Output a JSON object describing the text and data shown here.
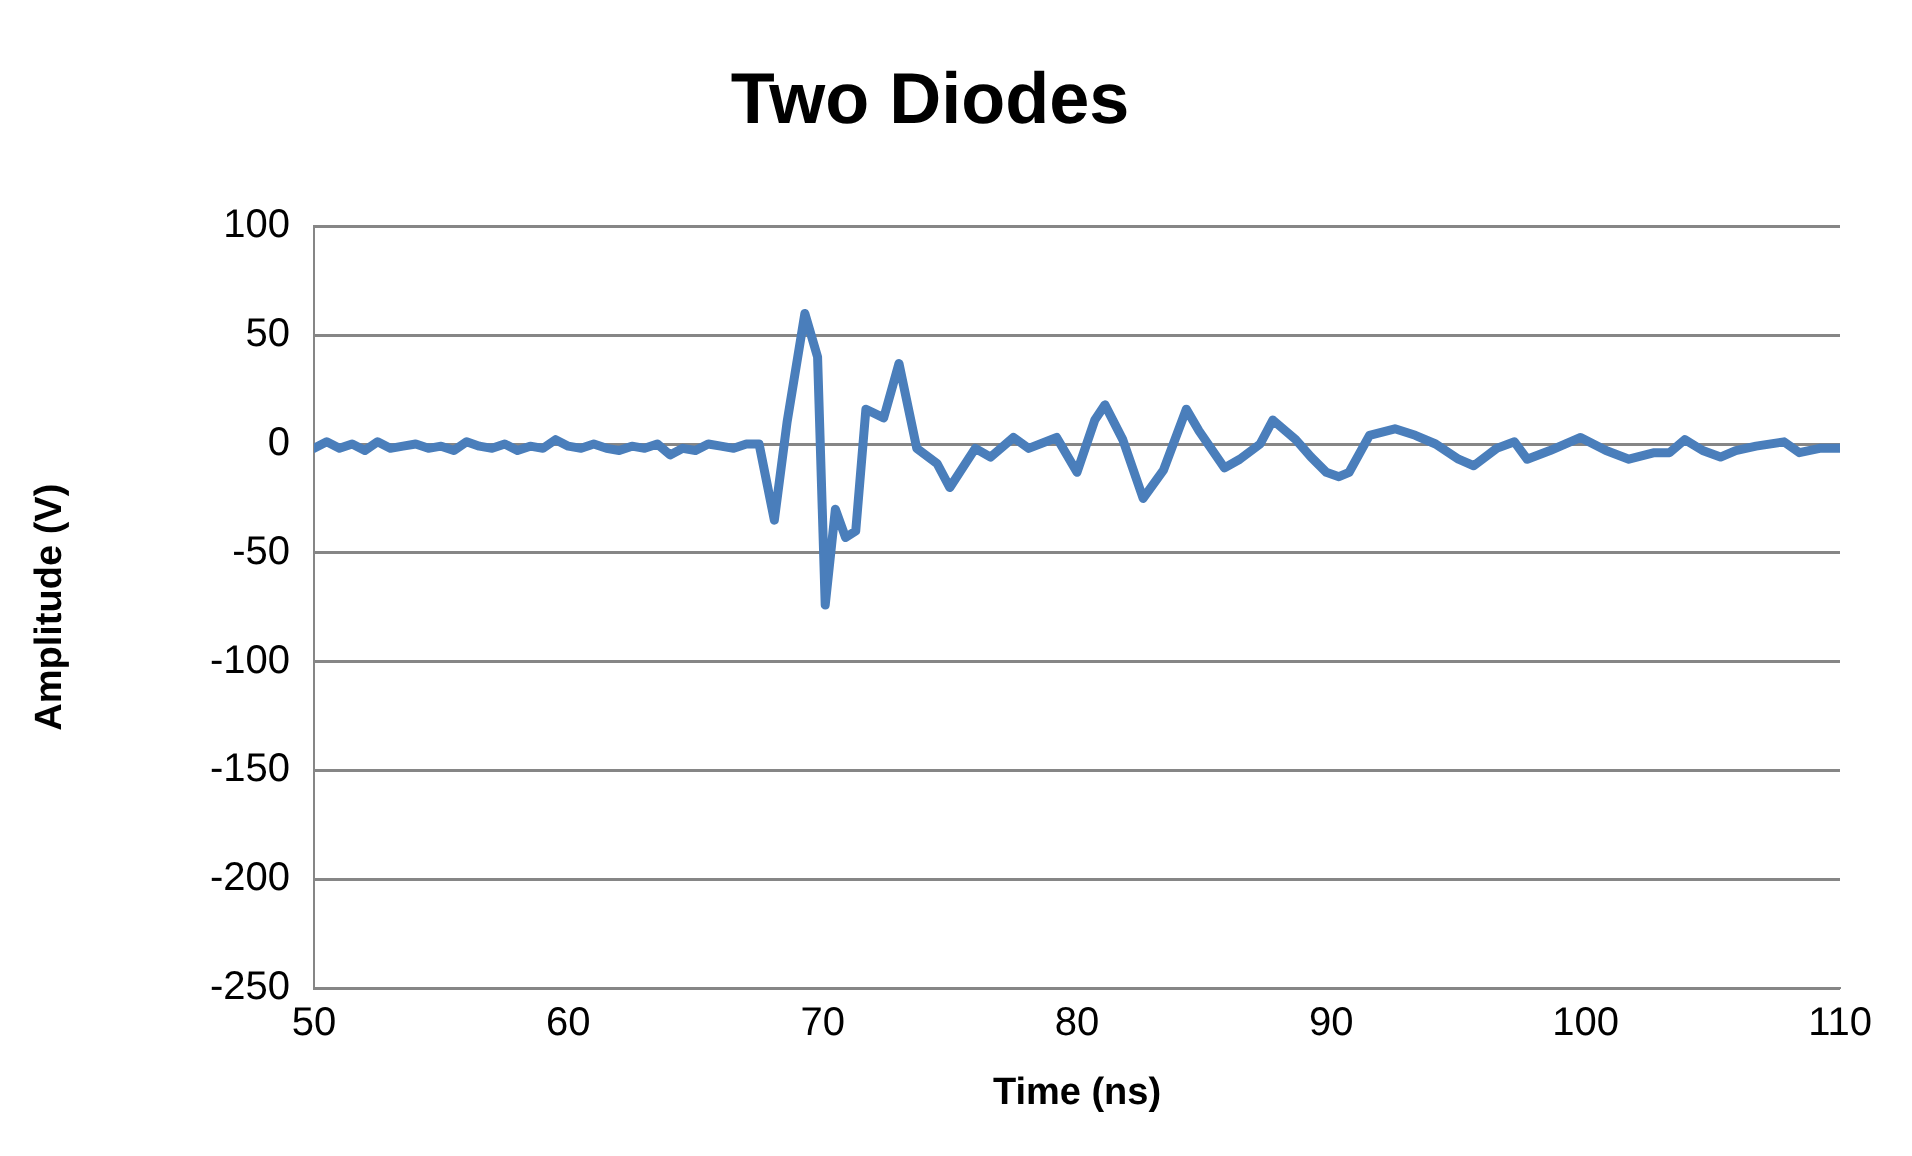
{
  "chart_data": {
    "type": "line",
    "title": "Two Diodes",
    "xlabel": "Time (ns)",
    "ylabel": "Amplitude (V)",
    "x": [
      50,
      50.5,
      51,
      51.5,
      52,
      52.5,
      53,
      53.5,
      54,
      54.5,
      55,
      55.5,
      56,
      56.5,
      57,
      57.5,
      58,
      58.5,
      59,
      59.5,
      60,
      60.5,
      61,
      61.5,
      62,
      62.5,
      63,
      63.5,
      64,
      64.5,
      65,
      65.5,
      66,
      66.5,
      67,
      67.5,
      68.1,
      68.6,
      69.3,
      69.8,
      70.1,
      70.5,
      70.9,
      71.3,
      71.7,
      72.4,
      73,
      73.7,
      74.5,
      75,
      76,
      76.6,
      77.5,
      78.1,
      79.2,
      80,
      80.7,
      81.1,
      81.8,
      82.6,
      83.4,
      84.3,
      84.8,
      85.8,
      86.4,
      87.2,
      87.7,
      88.6,
      89.2,
      89.8,
      90.3,
      90.7,
      91.5,
      92.5,
      93.3,
      94.1,
      95,
      95.6,
      96.5,
      97.2,
      97.7,
      98.6,
      99.8,
      100.8,
      101.7,
      102.7,
      103.3,
      103.9,
      104.6,
      105.3,
      105.9,
      106.7,
      107.8,
      108.4,
      109.2,
      110
    ],
    "values": [
      -2,
      1,
      -2,
      0,
      -3,
      1,
      -2,
      -1,
      0,
      -2,
      -1,
      -3,
      1,
      -1,
      -2,
      0,
      -3,
      -1,
      -2,
      2,
      -1,
      -2,
      0,
      -2,
      -3,
      -1,
      -2,
      0,
      -5,
      -2,
      -3,
      0,
      -1,
      -2,
      0,
      0,
      -35,
      10,
      60,
      40,
      -74,
      -30,
      -43,
      -40,
      16,
      12,
      37,
      -2,
      -9,
      -20,
      -2,
      -6,
      3,
      -2,
      3,
      -13,
      11,
      18,
      2,
      -25,
      -12,
      16,
      6,
      -11,
      -7,
      0,
      11,
      2,
      -6,
      -13,
      -15,
      -13,
      4,
      7,
      4,
      0,
      -7,
      -10,
      -2,
      1,
      -7,
      -3,
      3,
      -3,
      -7,
      -4,
      -4,
      2,
      -3,
      -6,
      -3,
      -1,
      1,
      -4,
      -2,
      -2
    ],
    "color": "#4a7ebb",
    "marker": "none",
    "line_style": "solid",
    "xlim": [
      50,
      110
    ],
    "xticks": [
      50,
      60,
      70,
      80,
      90,
      100,
      110
    ],
    "ylim": [
      -250,
      100
    ],
    "yticks": [
      -250,
      -200,
      -150,
      -100,
      -50,
      0,
      50,
      100
    ],
    "grid": "y",
    "legend": false
  }
}
